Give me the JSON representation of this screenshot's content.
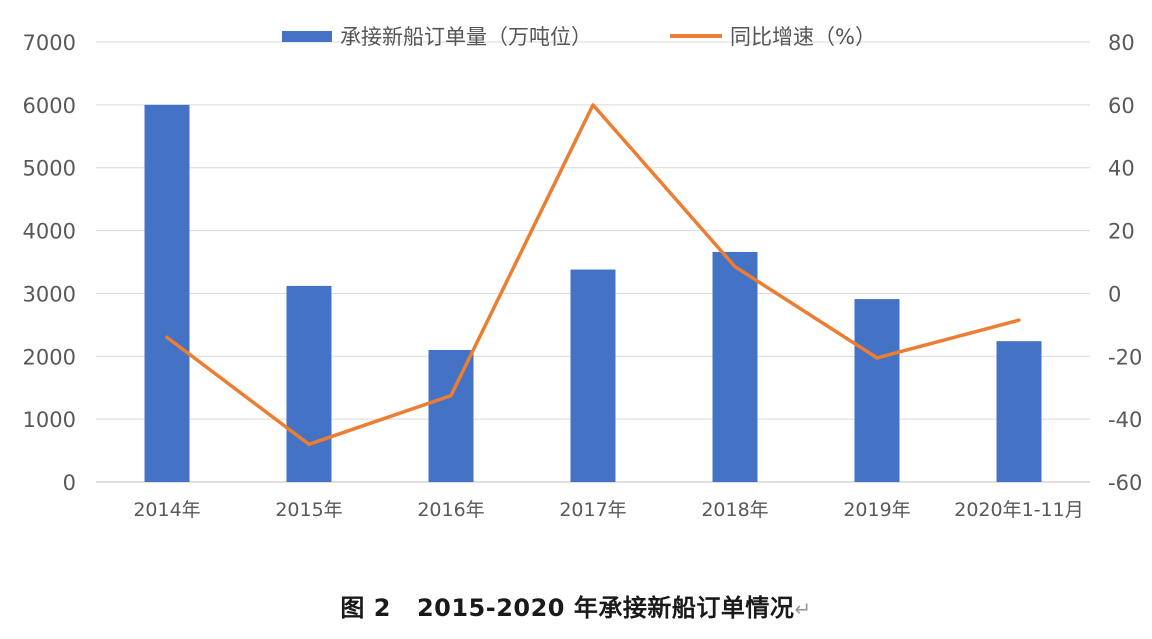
{
  "chart_data": {
    "type": "bar+line",
    "categories": [
      "2014年",
      "2015年",
      "2016年",
      "2017年",
      "2018年",
      "2019年",
      "2020年1-11月"
    ],
    "series": [
      {
        "name": "承接新船订单量（万吨位）",
        "type": "bar",
        "axis": "left",
        "color": "#4472C4",
        "values": [
          6000,
          3120,
          2100,
          3380,
          3660,
          2910,
          2240
        ]
      },
      {
        "name": "同比增速（%）",
        "type": "line",
        "axis": "right",
        "color": "#ED7D31",
        "values": [
          -14,
          -48,
          -32.5,
          60,
          8.5,
          -20.5,
          -8.5
        ]
      }
    ],
    "y_left": {
      "min": 0,
      "max": 7000,
      "ticks": [
        "0",
        "1000",
        "2000",
        "3000",
        "4000",
        "5000",
        "6000",
        "7000"
      ]
    },
    "y_right": {
      "min": -60,
      "max": 80,
      "ticks": [
        "-60",
        "-40",
        "-20",
        "0",
        "20",
        "40",
        "60",
        "80"
      ]
    },
    "grid": true,
    "legend_position": "top-center"
  },
  "caption": {
    "prefix": "图 2",
    "title": "2015-2020 年承接新船订单情况",
    "return_mark": "↵"
  }
}
